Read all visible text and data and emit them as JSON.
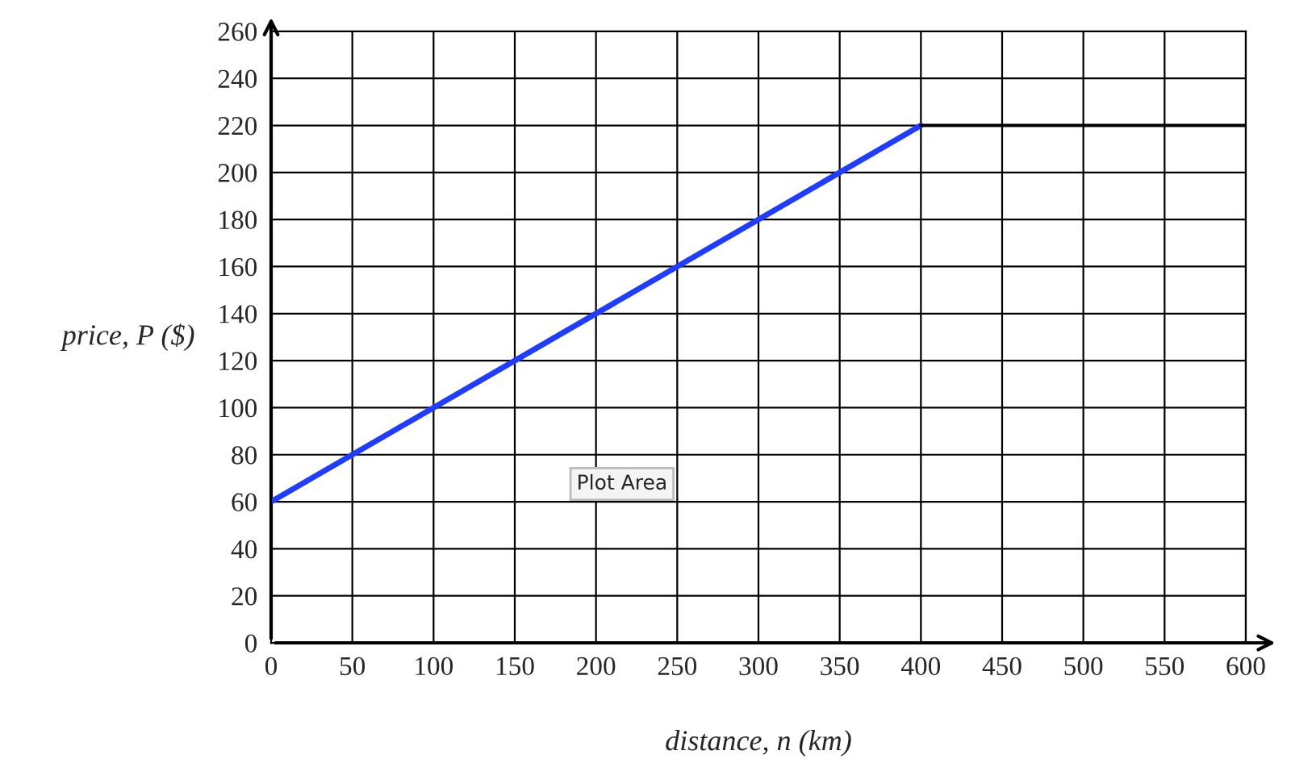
{
  "chart_data": {
    "type": "line",
    "xlabel": "distance, n (km)",
    "ylabel": "price, P ($)",
    "series": [
      {
        "x": [
          0,
          400
        ],
        "values": [
          60,
          220
        ],
        "color": "#1f3cff"
      },
      {
        "x": [
          400,
          600
        ],
        "values": [
          220,
          220
        ],
        "color": "#000000"
      }
    ],
    "xlim": [
      0,
      600
    ],
    "ylim": [
      0,
      260
    ],
    "xticks": [
      0,
      50,
      100,
      150,
      200,
      250,
      300,
      350,
      400,
      450,
      500,
      550,
      600
    ],
    "yticks": [
      0,
      20,
      40,
      60,
      80,
      100,
      120,
      140,
      160,
      180,
      200,
      220,
      240,
      260
    ],
    "grid": true,
    "legend": false,
    "marker": "none",
    "line_style": "solid",
    "annotations": [
      "Plot Area"
    ]
  }
}
